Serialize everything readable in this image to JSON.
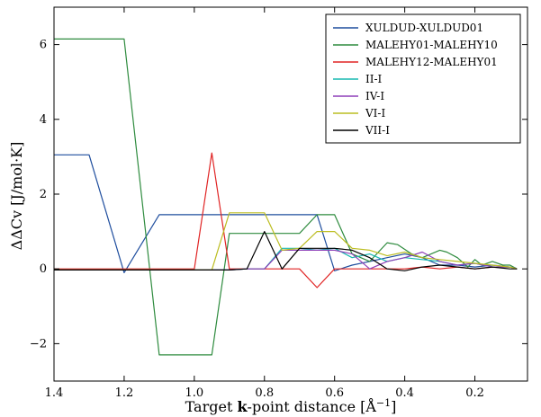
{
  "chart_data": {
    "type": "line",
    "xlabel": "Target k-point distance [Å⁻¹]",
    "xlabel_parts": {
      "prefix": "Target ",
      "bold": "k",
      "middle": "-point distance [Å",
      "sup": "−1",
      "suffix": "]"
    },
    "ylabel": "ΔΔCv [J/mol·K]",
    "xlim": [
      1.4,
      0.05
    ],
    "ylim": [
      -3,
      7
    ],
    "x_ticks": [
      1.4,
      1.2,
      1.0,
      0.8,
      0.6,
      0.4,
      0.2
    ],
    "x_tick_labels": [
      "1.4",
      "1.2",
      "1.0",
      "0.8",
      "0.6",
      "0.4",
      "0.2"
    ],
    "y_ticks": [
      -2,
      0,
      2,
      4,
      6
    ],
    "y_tick_labels": [
      "−2",
      "0",
      "2",
      "4",
      "6"
    ],
    "grid": false,
    "legend_position": "top-right",
    "series": [
      {
        "name": "XULDUD-XULDUD01",
        "color": "#1f4e9e",
        "x": [
          1.4,
          1.3,
          1.2,
          1.1,
          1.0,
          0.9,
          0.8,
          0.75,
          0.7,
          0.65,
          0.6,
          0.55,
          0.5,
          0.45,
          0.4,
          0.35,
          0.3,
          0.25,
          0.2,
          0.15,
          0.1,
          0.08
        ],
        "y": [
          3.05,
          3.05,
          -0.1,
          1.45,
          1.45,
          1.45,
          1.45,
          1.45,
          1.45,
          1.45,
          -0.05,
          0.1,
          0.2,
          0.3,
          0.4,
          0.3,
          0.1,
          0.1,
          0.05,
          0.1,
          0.05,
          0.0
        ]
      },
      {
        "name": "MALEHY01-MALEHY10",
        "color": "#2e8b3e",
        "x": [
          1.4,
          1.2,
          1.1,
          1.0,
          0.95,
          0.9,
          0.8,
          0.7,
          0.65,
          0.6,
          0.55,
          0.5,
          0.45,
          0.42,
          0.38,
          0.35,
          0.3,
          0.28,
          0.25,
          0.22,
          0.2,
          0.18,
          0.15,
          0.12,
          0.1,
          0.08
        ],
        "y": [
          6.15,
          6.15,
          -2.3,
          -2.3,
          -2.3,
          0.95,
          0.95,
          0.95,
          1.45,
          1.45,
          0.4,
          0.2,
          0.7,
          0.65,
          0.4,
          0.3,
          0.5,
          0.45,
          0.3,
          0.05,
          0.25,
          0.1,
          0.2,
          0.1,
          0.1,
          0.0
        ]
      },
      {
        "name": "MALEHY12-MALEHY01",
        "color": "#e02424",
        "x": [
          1.4,
          1.0,
          0.95,
          0.9,
          0.85,
          0.8,
          0.75,
          0.7,
          0.65,
          0.6,
          0.55,
          0.5,
          0.45,
          0.4,
          0.35,
          0.3,
          0.25,
          0.2,
          0.15,
          0.1,
          0.08
        ],
        "y": [
          0.0,
          0.0,
          3.1,
          0.0,
          0.0,
          0.0,
          0.0,
          0.0,
          -0.5,
          0.0,
          0.0,
          0.0,
          0.0,
          0.0,
          0.05,
          0.0,
          0.05,
          0.0,
          0.05,
          0.05,
          0.0
        ]
      },
      {
        "name": "II-I",
        "color": "#17b8b0",
        "x": [
          1.4,
          0.9,
          0.85,
          0.8,
          0.75,
          0.7,
          0.65,
          0.6,
          0.55,
          0.5,
          0.45,
          0.4,
          0.35,
          0.3,
          0.25,
          0.2,
          0.15,
          0.1,
          0.08
        ],
        "y": [
          -0.03,
          -0.03,
          0.0,
          0.0,
          0.55,
          0.55,
          0.5,
          0.55,
          0.3,
          0.4,
          0.2,
          0.3,
          0.25,
          0.2,
          0.1,
          0.15,
          0.05,
          0.05,
          0.0
        ]
      },
      {
        "name": "IV-I",
        "color": "#8e3fb8",
        "x": [
          1.4,
          0.9,
          0.85,
          0.8,
          0.75,
          0.7,
          0.65,
          0.6,
          0.55,
          0.5,
          0.45,
          0.4,
          0.35,
          0.3,
          0.25,
          0.2,
          0.15,
          0.1,
          0.08
        ],
        "y": [
          -0.03,
          -0.03,
          0.0,
          0.0,
          0.5,
          0.5,
          0.5,
          0.5,
          0.4,
          0.0,
          0.2,
          0.3,
          0.45,
          0.2,
          0.1,
          0.15,
          0.05,
          0.05,
          0.0
        ]
      },
      {
        "name": "VI-I",
        "color": "#bcbd22",
        "x": [
          1.4,
          0.95,
          0.9,
          0.8,
          0.75,
          0.7,
          0.65,
          0.6,
          0.55,
          0.5,
          0.45,
          0.4,
          0.35,
          0.3,
          0.25,
          0.2,
          0.15,
          0.1,
          0.08
        ],
        "y": [
          -0.03,
          -0.03,
          1.5,
          1.5,
          0.5,
          0.55,
          1.0,
          1.0,
          0.55,
          0.5,
          0.35,
          0.45,
          0.3,
          0.25,
          0.2,
          0.15,
          0.1,
          0.05,
          0.0
        ]
      },
      {
        "name": "VII-I",
        "color": "#000000",
        "x": [
          1.4,
          0.9,
          0.85,
          0.8,
          0.75,
          0.7,
          0.65,
          0.6,
          0.55,
          0.5,
          0.45,
          0.4,
          0.35,
          0.3,
          0.25,
          0.2,
          0.15,
          0.1,
          0.08
        ],
        "y": [
          -0.03,
          -0.03,
          0.0,
          1.0,
          0.0,
          0.55,
          0.55,
          0.55,
          0.5,
          0.3,
          0.0,
          -0.05,
          0.05,
          0.1,
          0.05,
          0.0,
          0.05,
          0.0,
          0.0
        ]
      }
    ]
  }
}
